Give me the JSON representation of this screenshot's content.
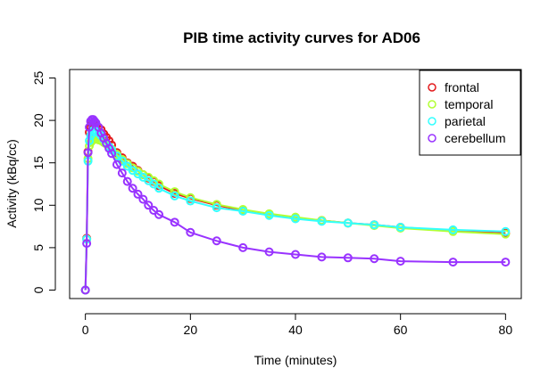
{
  "chart_data": {
    "type": "line",
    "title": "PIB time activity curves for AD06",
    "xlabel": "Time (minutes)",
    "ylabel": "Activity (kBq/cc)",
    "xlim": [
      -3,
      83
    ],
    "ylim": [
      -1,
      26
    ],
    "xticks": [
      0,
      20,
      40,
      60,
      80
    ],
    "yticks": [
      0,
      5,
      10,
      15,
      20,
      25
    ],
    "grid": false,
    "legend_position": "top-right",
    "x": [
      0,
      0.25,
      0.5,
      0.75,
      1,
      1.25,
      1.5,
      1.75,
      2,
      2.5,
      3,
      3.5,
      4,
      4.5,
      5,
      6,
      7,
      8,
      9,
      10,
      11,
      12,
      13,
      14,
      17,
      20,
      25,
      30,
      35,
      40,
      45,
      50,
      55,
      60,
      70,
      80
    ],
    "series": [
      {
        "name": "frontal",
        "color": "#e31a1c",
        "values": [
          0,
          6.1,
          16.3,
          18.6,
          19.2,
          19.6,
          19.7,
          19.6,
          19.5,
          19.2,
          18.9,
          18.4,
          18.0,
          17.6,
          17.1,
          16.2,
          15.6,
          15.0,
          14.6,
          14.1,
          13.6,
          13.2,
          12.8,
          12.3,
          11.4,
          10.8,
          10.0,
          9.4,
          8.9,
          8.5,
          8.2,
          7.9,
          7.7,
          7.4,
          7.0,
          6.7
        ]
      },
      {
        "name": "temporal",
        "color": "#b2ff33",
        "values": [
          0,
          6.0,
          15.5,
          17.0,
          17.4,
          17.6,
          17.7,
          17.8,
          17.8,
          17.7,
          17.6,
          17.4,
          17.2,
          16.9,
          16.6,
          16.0,
          15.4,
          14.9,
          14.4,
          14.0,
          13.6,
          13.3,
          12.9,
          12.5,
          11.6,
          10.9,
          10.1,
          9.5,
          9.0,
          8.6,
          8.2,
          7.9,
          7.6,
          7.3,
          6.9,
          6.6
        ]
      },
      {
        "name": "parietal",
        "color": "#33ffff",
        "values": [
          0,
          6.0,
          15.2,
          17.6,
          18.2,
          18.6,
          18.8,
          18.8,
          18.8,
          18.5,
          18.2,
          17.8,
          17.3,
          16.9,
          16.5,
          15.8,
          15.2,
          14.6,
          14.1,
          13.7,
          13.3,
          12.9,
          12.5,
          12.0,
          11.1,
          10.5,
          9.7,
          9.3,
          8.8,
          8.4,
          8.1,
          7.9,
          7.7,
          7.4,
          7.1,
          6.9
        ]
      },
      {
        "name": "cerebellum",
        "color": "#9933ff",
        "values": [
          0,
          5.5,
          16.2,
          19.2,
          19.9,
          20.1,
          20.1,
          19.9,
          19.7,
          19.2,
          18.5,
          17.9,
          17.3,
          16.7,
          16.1,
          14.8,
          13.8,
          12.8,
          12.0,
          11.3,
          10.7,
          10.0,
          9.4,
          8.9,
          8.0,
          6.8,
          5.8,
          5.0,
          4.5,
          4.2,
          3.9,
          3.8,
          3.7,
          3.4,
          3.3,
          3.3
        ]
      }
    ]
  }
}
